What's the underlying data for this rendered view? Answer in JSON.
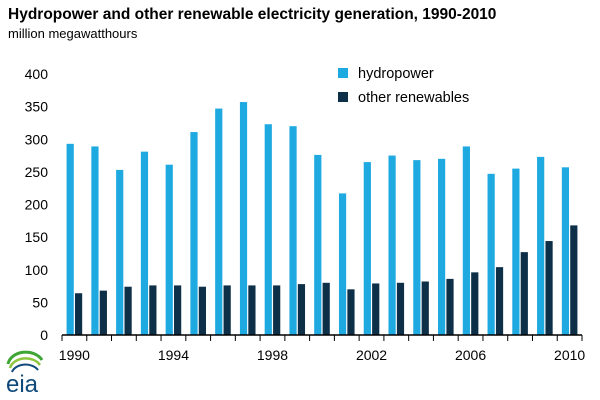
{
  "title": "Hydropower and other renewable electricity generation, 1990-2010",
  "subtitle": "million megawatthours",
  "logo_text": "eia",
  "colors": {
    "hydropower": "#1ea9e1",
    "other_renewables": "#0d2f48",
    "axis": "#000000"
  },
  "chart_data": {
    "type": "bar",
    "title": "Hydropower and other renewable electricity generation, 1990-2010",
    "ylabel": "million megawatthours",
    "xlabel": "",
    "categories": [
      "1990",
      "1991",
      "1992",
      "1993",
      "1994",
      "1995",
      "1996",
      "1997",
      "1998",
      "1999",
      "2000",
      "2001",
      "2002",
      "2003",
      "2004",
      "2005",
      "2006",
      "2007",
      "2008",
      "2009",
      "2010"
    ],
    "x_tick_labels": [
      "1990",
      "1994",
      "1998",
      "2002",
      "2006",
      "2010"
    ],
    "y_ticks": [
      0,
      50,
      100,
      150,
      200,
      250,
      300,
      350,
      400
    ],
    "ylim": [
      0,
      400
    ],
    "grid": false,
    "legend_position": "top-right",
    "series": [
      {
        "name": "hydropower",
        "color": "#1ea9e1",
        "values": [
          293,
          289,
          253,
          281,
          261,
          311,
          347,
          357,
          323,
          320,
          276,
          217,
          265,
          275,
          268,
          270,
          289,
          247,
          255,
          273,
          257
        ]
      },
      {
        "name": "other renewables",
        "color": "#0d2f48",
        "values": [
          64,
          68,
          74,
          76,
          76,
          74,
          76,
          76,
          76,
          78,
          80,
          70,
          79,
          80,
          82,
          86,
          96,
          104,
          127,
          144,
          168
        ]
      }
    ]
  }
}
